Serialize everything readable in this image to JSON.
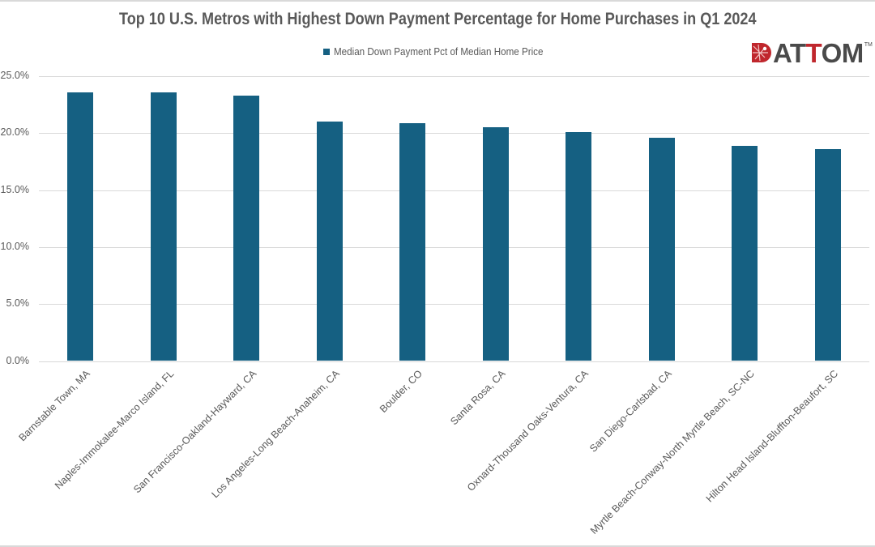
{
  "title": "Top 10 U.S. Metros with Highest Down Payment Percentage for Home Purchases in Q1 2024",
  "legend": {
    "label": "Median Down Payment Pct of Median Home Price",
    "swatch_color": "#156082"
  },
  "logo": {
    "part1": "AT",
    "part2": "T",
    "part3": "OM",
    "tm": "TM",
    "brand_red": "#c0272d",
    "brand_gray": "#4a4a4a"
  },
  "colors": {
    "bar": "#156082",
    "grid": "#d9d9d9",
    "text": "#595959"
  },
  "y_axis": {
    "ticks": [
      "0.0%",
      "5.0%",
      "10.0%",
      "15.0%",
      "20.0%",
      "25.0%"
    ]
  },
  "chart_data": {
    "type": "bar",
    "title": "Top 10 U.S. Metros with Highest Down Payment Percentage for Home Purchases in Q1 2024",
    "xlabel": "",
    "ylabel": "",
    "ylim": [
      0,
      25
    ],
    "y_tick_format": "percent_1dp",
    "y_ticks": [
      0,
      5,
      10,
      15,
      20,
      25
    ],
    "grid": "horizontal",
    "legend_position": "top",
    "categories": [
      "Barnstable Town, MA",
      "Naples-Immokalee-Marco Island, FL",
      "San Francisco-Oakland-Hayward, CA",
      "Los Angeles-Long Beach-Anaheim, CA",
      "Boulder, CO",
      "Santa Rosa, CA",
      "Oxnard-Thousand Oaks-Ventura, CA",
      "San Diego-Carlsbad, CA",
      "Myrtle Beach-Conway-North Myrtle Beach, SC-NC",
      "Hilton Head Island-Bluffton-Beaufort, SC"
    ],
    "series": [
      {
        "name": "Median Down Payment Pct of Median Home Price",
        "color": "#156082",
        "values": [
          23.6,
          23.6,
          23.3,
          21.0,
          20.9,
          20.5,
          20.1,
          19.6,
          18.9,
          18.6
        ]
      }
    ]
  }
}
